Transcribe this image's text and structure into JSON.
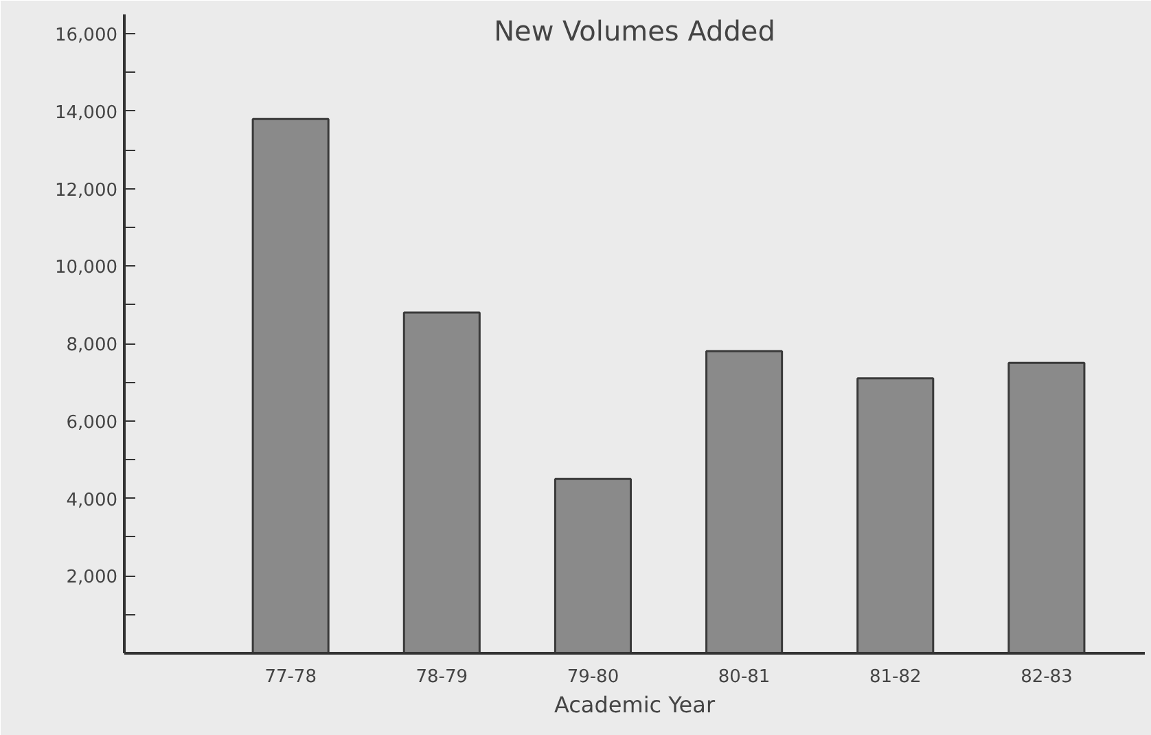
{
  "chart_data": {
    "type": "bar",
    "title": "New Volumes Added",
    "xlabel": "Academic Year",
    "categories": [
      "77-78",
      "78-79",
      "79-80",
      "80-81",
      "81-82",
      "82-83"
    ],
    "values": [
      13800,
      8800,
      4500,
      7800,
      7100,
      7500
    ],
    "color": "#8a8a8a",
    "ylim": [
      0,
      16500
    ],
    "yticks": [
      {
        "value": 1000,
        "label": null
      },
      "2,000",
      {
        "value": 3000,
        "label": null
      },
      {
        "value": 4000,
        "label": "4,000"
      },
      {
        "value": 5000,
        "label": null
      },
      {
        "value": 6000,
        "label": "6,000"
      },
      {
        "value": 7000,
        "label": null
      },
      {
        "value": 8000,
        "label": "8,000"
      },
      {
        "value": 9000,
        "label": null
      },
      {
        "value": 10000,
        "label": "10,000"
      },
      {
        "value": 11000,
        "label": null
      },
      {
        "value": 12000,
        "label": "12,000"
      },
      {
        "value": 13000,
        "label": null
      },
      {
        "value": 14000,
        "label": "14,000"
      },
      {
        "value": 15000,
        "label": null
      },
      {
        "value": 16000,
        "label": "16,000"
      }
    ],
    "grid": false
  }
}
